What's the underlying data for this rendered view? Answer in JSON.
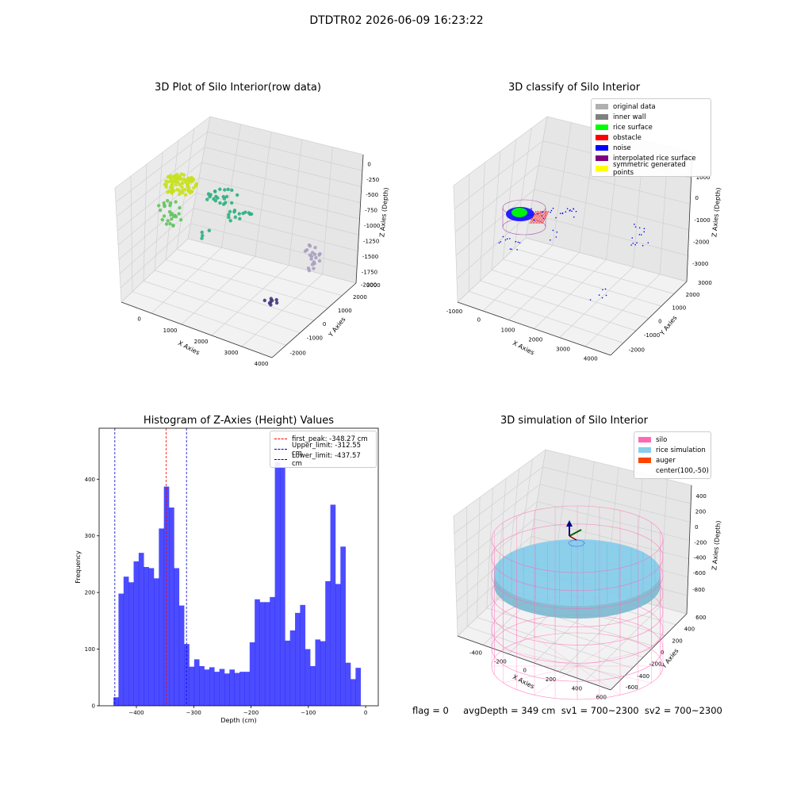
{
  "suptitle": "DTDTR02 2026-06-09 16:23:22",
  "footer": "flag = 0     avgDepth = 349 cm  sv1 = 700~2300  sv2 = 700~2300",
  "chart_data": [
    {
      "type": "scatter",
      "title": "3D Plot of Silo Interior(row data)",
      "xlabel": "X Axies",
      "ylabel": "Y Axies",
      "zlabel": "Z Axies (Depth)",
      "x_ticks": [
        "0",
        "1000",
        "2000",
        "3000",
        "4000"
      ],
      "y_ticks": [
        "-2000",
        "-1000",
        "0",
        "1000",
        "2000",
        "3000"
      ],
      "z_ticks": [
        "0",
        "-250",
        "-500",
        "-750",
        "-1000",
        "-1250",
        "-1500",
        "-1750",
        "-2000"
      ],
      "colors": {
        "high": "#c8e11f",
        "mid": "#2ab07f",
        "low": "#3b528b",
        "deep": "#46337e",
        "far": "#a89ec0"
      }
    },
    {
      "type": "scatter",
      "title": "3D classify of Silo Interior",
      "xlabel": "X Axies",
      "ylabel": "Y Axies",
      "zlabel": "Z Axies (Depth)",
      "x_ticks": [
        "-1000",
        "0",
        "1000",
        "2000",
        "3000",
        "4000"
      ],
      "y_ticks": [
        "-2000",
        "-1000",
        "0",
        "1000",
        "2000",
        "3000"
      ],
      "z_ticks": [
        "1000",
        "0",
        "-1000",
        "-2000",
        "-3000"
      ],
      "legend": [
        {
          "label": "original data",
          "color": "#b0b0b0"
        },
        {
          "label": "inner wall",
          "color": "#808080"
        },
        {
          "label": "rice surface",
          "color": "#00ff00"
        },
        {
          "label": "obstacle",
          "color": "#ff0000"
        },
        {
          "label": "noise",
          "color": "#0000ff"
        },
        {
          "label": "interpolated rice surface",
          "color": "#800080"
        },
        {
          "label": "symmetric generated points",
          "color": "#ffff00"
        }
      ]
    },
    {
      "type": "bar",
      "title": "Histogram of Z-Axies (Height) Values",
      "xlabel": "Depth (cm)",
      "ylabel": "Frequency",
      "bar_color": "#0000ff",
      "bin_start": -440,
      "bin_width": 8.8,
      "values": [
        15,
        198,
        228,
        218,
        255,
        270,
        245,
        243,
        225,
        313,
        387,
        350,
        243,
        177,
        109,
        69,
        82,
        70,
        64,
        68,
        60,
        65,
        57,
        64,
        58,
        60,
        60,
        112,
        188,
        183,
        183,
        192,
        430,
        420,
        115,
        133,
        164,
        178,
        100,
        70,
        117,
        114,
        220,
        355,
        215,
        281,
        76,
        47,
        67
      ],
      "xlim": [
        -465,
        22
      ],
      "ylim": [
        0,
        490
      ],
      "x_ticks": [
        -400,
        -300,
        -200,
        -100,
        0
      ],
      "x_tick_labels": [
        "−400",
        "−300",
        "−200",
        "−100",
        "0"
      ],
      "y_ticks": [
        0,
        100,
        200,
        300,
        400
      ],
      "vlines": [
        {
          "label": "first_peak: -348.27 cm",
          "x": -348.27,
          "color": "#ff0000"
        },
        {
          "label": "Upper_limit: -312.55 cm",
          "x": -312.55,
          "color": "#0000cc"
        },
        {
          "label": "Lower_limit: -437.57 cm",
          "x": -437.57,
          "color": "#0000cc"
        }
      ]
    },
    {
      "type": "scatter",
      "title": "3D simulation of Silo Interior",
      "xlabel": "X Axies",
      "ylabel": "Y Axies",
      "zlabel": "Z Axies (Depth)",
      "x_ticks": [
        "-400",
        "-200",
        "0",
        "200",
        "400",
        "600"
      ],
      "y_ticks": [
        "-600",
        "-400",
        "-200",
        "0",
        "200",
        "400",
        "600"
      ],
      "z_ticks": [
        "400",
        "200",
        "0",
        "-200",
        "-400",
        "-600",
        "-800"
      ],
      "legend": [
        {
          "label": "silo",
          "color": "#ff69b4"
        },
        {
          "label": "rice simulation",
          "color": "#87ceeb"
        },
        {
          "label": "auger",
          "color": "#ff4500"
        },
        {
          "label": "center(100,-50)",
          "color": ""
        }
      ]
    }
  ]
}
